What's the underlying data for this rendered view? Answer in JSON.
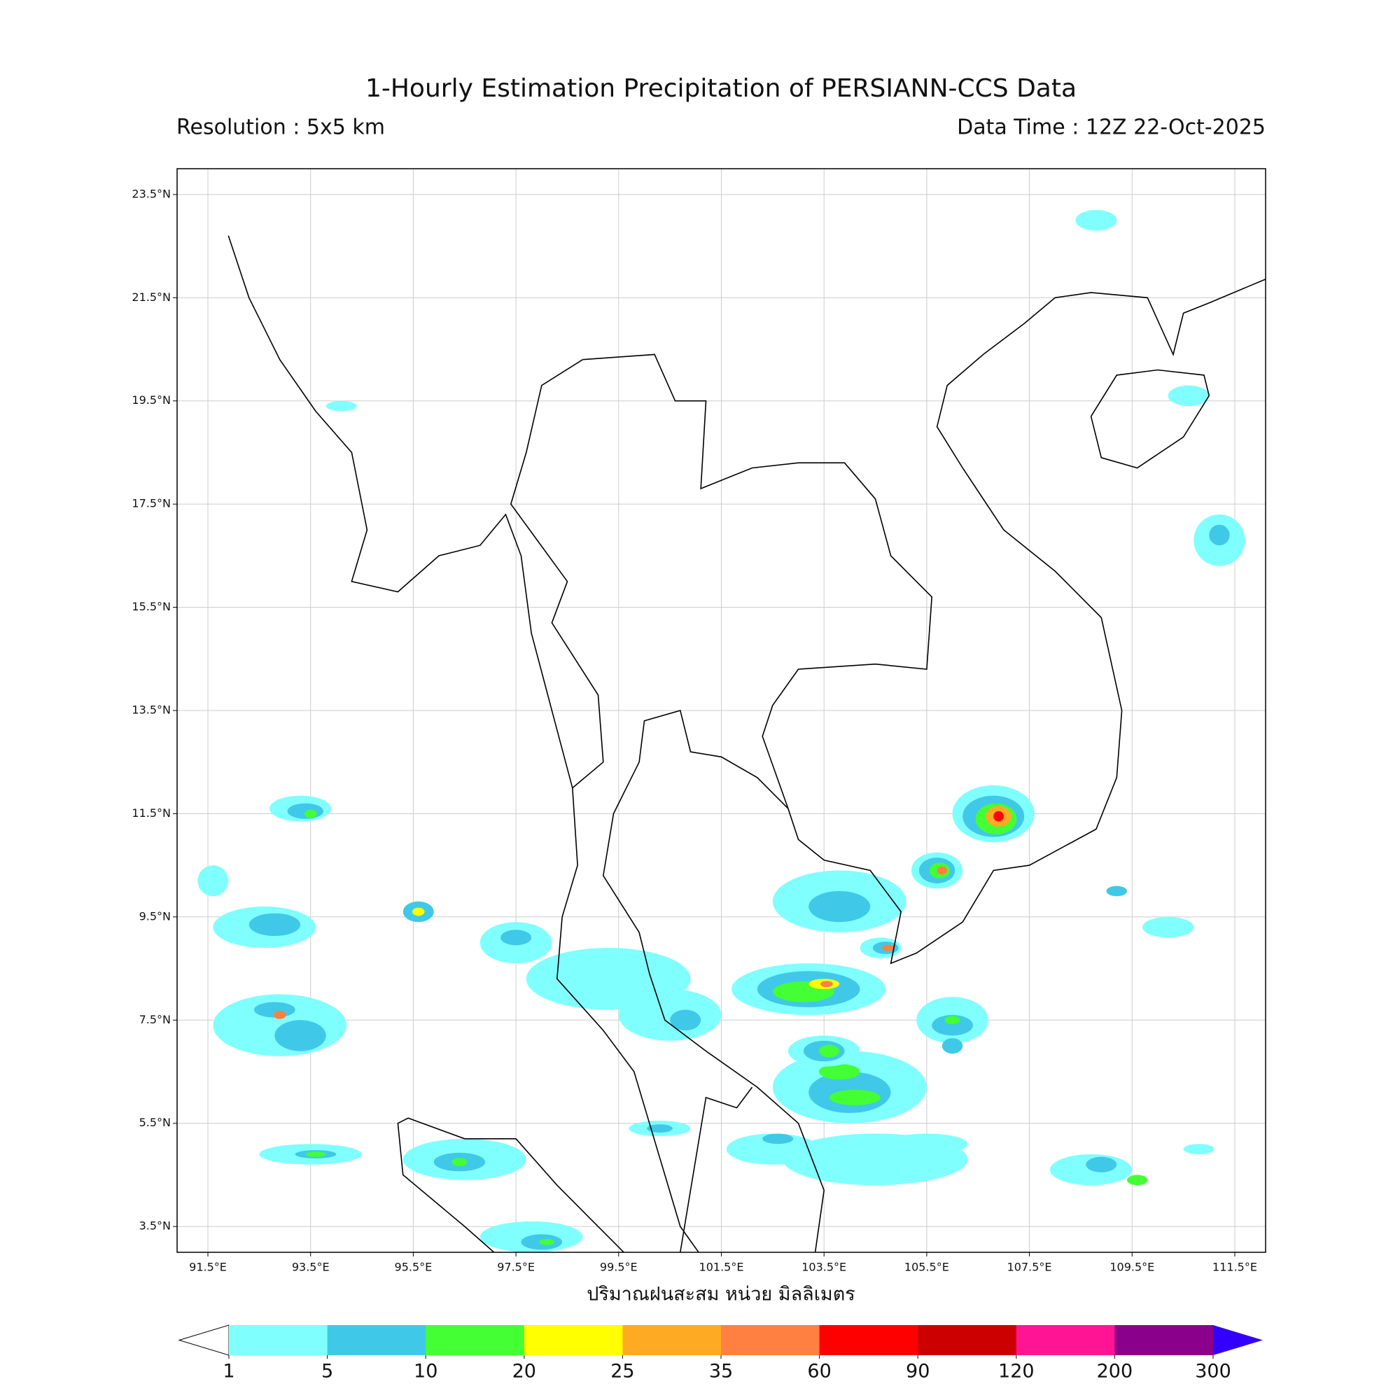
{
  "map": {
    "title": "1-Hourly Estimation Precipitation of PERSIANN-CCS Data",
    "resolution": "Resolution : 5x5 km",
    "data_time": "Data Time : 12Z 22-Oct-2025",
    "x_label": "ปริมาณฝนสะสม หน่วย มิลลิเมตร",
    "xlim": [
      90.9,
      112.1
    ],
    "ylim": [
      3.0,
      24.0
    ],
    "xticks": [
      {
        "value": 91.5,
        "label": "91.5°E"
      },
      {
        "value": 93.5,
        "label": "93.5°E"
      },
      {
        "value": 95.5,
        "label": "95.5°E"
      },
      {
        "value": 97.5,
        "label": "97.5°E"
      },
      {
        "value": 99.5,
        "label": "99.5°E"
      },
      {
        "value": 101.5,
        "label": "101.5°E"
      },
      {
        "value": 103.5,
        "label": "103.5°E"
      },
      {
        "value": 105.5,
        "label": "105.5°E"
      },
      {
        "value": 107.5,
        "label": "107.5°E"
      },
      {
        "value": 109.5,
        "label": "109.5°E"
      },
      {
        "value": 111.5,
        "label": "111.5°E"
      }
    ],
    "yticks": [
      {
        "value": 3.5,
        "label": "3.5°N"
      },
      {
        "value": 5.5,
        "label": "5.5°N"
      },
      {
        "value": 7.5,
        "label": "7.5°N"
      },
      {
        "value": 9.5,
        "label": "9.5°N"
      },
      {
        "value": 11.5,
        "label": "11.5°N"
      },
      {
        "value": 13.5,
        "label": "13.5°N"
      },
      {
        "value": 15.5,
        "label": "15.5°N"
      },
      {
        "value": 17.5,
        "label": "17.5°N"
      },
      {
        "value": 19.5,
        "label": "19.5°N"
      },
      {
        "value": 21.5,
        "label": "21.5°N"
      },
      {
        "value": 23.5,
        "label": "23.5°N"
      }
    ],
    "grid": true,
    "colorbar": {
      "levels": [
        1,
        5,
        10,
        20,
        25,
        35,
        60,
        90,
        120,
        200,
        300
      ],
      "colors": [
        "#80ffff",
        "#40c8e8",
        "#44ff33",
        "#ffff00",
        "#ffaa22",
        "#ff8040",
        "#ff0000",
        "#cc0000",
        "#ff1493",
        "#8b008b"
      ],
      "under_color": "#ffffff",
      "over_color": "#3300ff"
    }
  }
}
